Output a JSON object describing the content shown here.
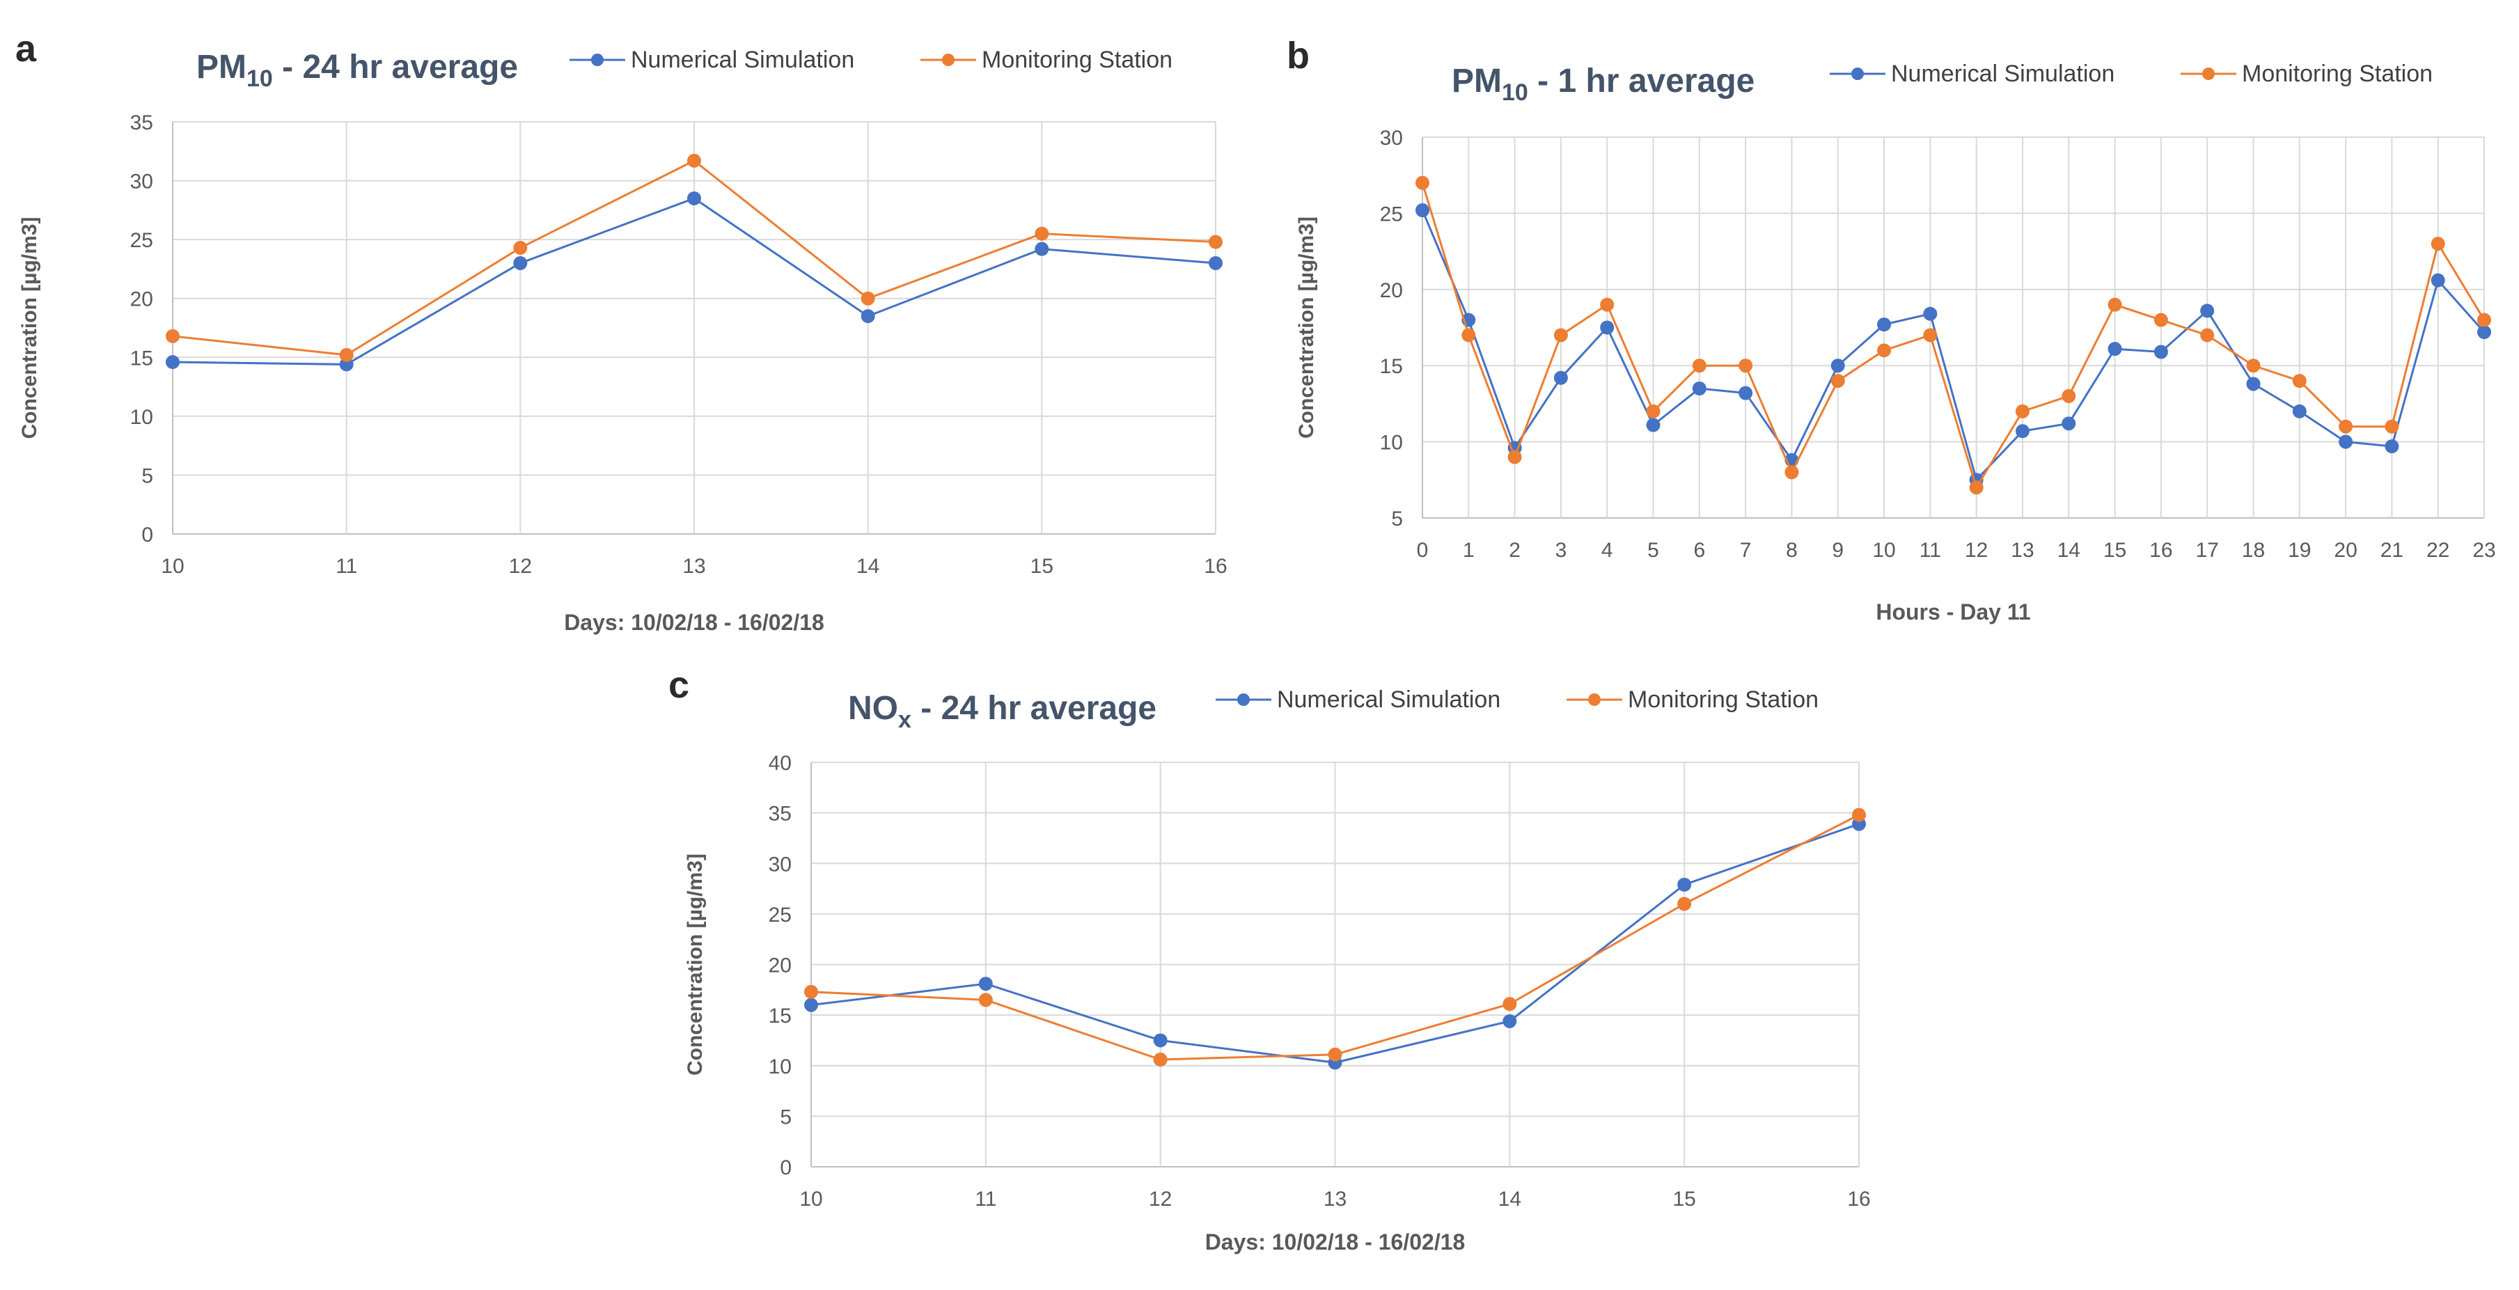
{
  "colors": {
    "sim": "#4472c4",
    "mon": "#ed7d31",
    "grid": "#d9d9d9",
    "axis": "#bfbfbf"
  },
  "chart_data": [
    {
      "id": "a",
      "type": "line",
      "panel_label": "a",
      "title_base": "PM",
      "title_sub": "10",
      "title_rest": " - 24 hr average",
      "xlabel": "Days: 10/02/18 - 16/02/18",
      "ylabel": "Concentration [µg/m3]",
      "categories": [
        "10",
        "11",
        "12",
        "13",
        "14",
        "15",
        "16"
      ],
      "ylim": [
        0,
        35
      ],
      "yticks": [
        "0",
        "5",
        "10",
        "15",
        "20",
        "25",
        "30",
        "35"
      ],
      "grid": true,
      "legend": "top",
      "series": [
        {
          "name": "Numerical Simulation",
          "values": [
            14.6,
            14.4,
            23.0,
            28.5,
            18.5,
            24.2,
            23.0
          ]
        },
        {
          "name": "Monitoring Station",
          "values": [
            16.8,
            15.2,
            24.3,
            31.7,
            20.0,
            25.5,
            24.8
          ]
        }
      ]
    },
    {
      "id": "b",
      "type": "line",
      "panel_label": "b",
      "title_base": "PM",
      "title_sub": "10",
      "title_rest": " - 1 hr average",
      "xlabel": "Hours - Day 11",
      "ylabel": "Concentration [µg/m3]",
      "categories": [
        "0",
        "1",
        "2",
        "3",
        "4",
        "5",
        "6",
        "7",
        "8",
        "9",
        "10",
        "11",
        "12",
        "13",
        "14",
        "15",
        "16",
        "17",
        "18",
        "19",
        "20",
        "21",
        "22",
        "23"
      ],
      "ylim": [
        5,
        30
      ],
      "yticks": [
        "5",
        "10",
        "15",
        "20",
        "25",
        "30"
      ],
      "grid": true,
      "legend": "top",
      "series": [
        {
          "name": "Numerical Simulation",
          "values": [
            25.2,
            18.0,
            9.6,
            14.2,
            17.5,
            11.1,
            13.5,
            13.2,
            8.8,
            15.0,
            17.7,
            18.4,
            7.5,
            10.7,
            11.2,
            16.1,
            15.9,
            18.6,
            13.8,
            12.0,
            10.0,
            9.7,
            20.6,
            17.2
          ]
        },
        {
          "name": "Monitoring Station",
          "values": [
            27.0,
            17.0,
            9.0,
            17.0,
            19.0,
            12.0,
            15.0,
            15.0,
            8.0,
            14.0,
            16.0,
            17.0,
            7.0,
            12.0,
            13.0,
            19.0,
            18.0,
            17.0,
            15.0,
            14.0,
            11.0,
            11.0,
            23.0,
            18.0
          ]
        }
      ]
    },
    {
      "id": "c",
      "type": "line",
      "panel_label": "c",
      "title_base": "NO",
      "title_sub": "x",
      "title_rest": " - 24 hr average",
      "xlabel": "Days: 10/02/18 - 16/02/18",
      "ylabel": "Concentration [µg/m3]",
      "categories": [
        "10",
        "11",
        "12",
        "13",
        "14",
        "15",
        "16"
      ],
      "ylim": [
        0,
        40
      ],
      "yticks": [
        "0",
        "5",
        "10",
        "15",
        "20",
        "25",
        "30",
        "35",
        "40"
      ],
      "grid": true,
      "legend": "top",
      "series": [
        {
          "name": "Numerical Simulation",
          "values": [
            16.0,
            18.1,
            12.5,
            10.3,
            14.4,
            27.9,
            33.9
          ]
        },
        {
          "name": "Monitoring Station",
          "values": [
            17.3,
            16.5,
            10.6,
            11.1,
            16.1,
            26.0,
            34.8
          ]
        }
      ]
    }
  ]
}
